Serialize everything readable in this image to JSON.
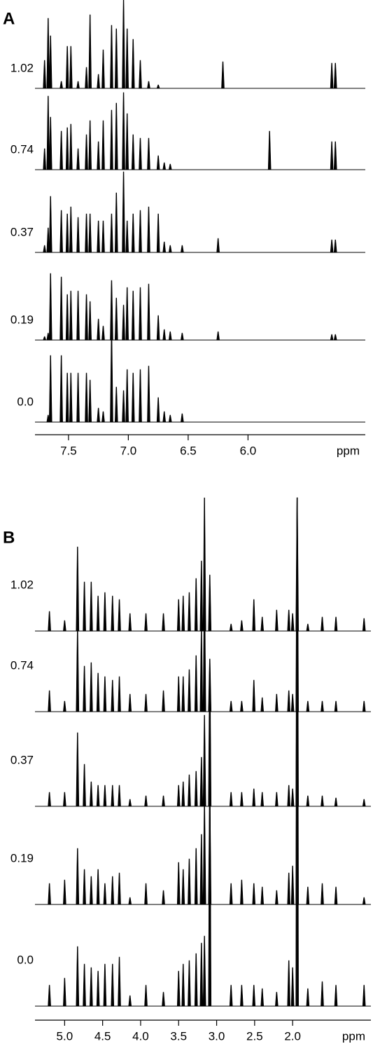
{
  "chart_data": [
    {
      "type": "spectrum",
      "panel_label": "A",
      "xlabel": "ppm",
      "color": "#000000",
      "xlim": [
        7.78,
        5.02
      ],
      "xticks": [
        7.5,
        {
          "value": 7,
          "label": "7.0"
        },
        6.5,
        {
          "value": 6,
          "label": "6.0"
        }
      ],
      "x": [
        7.7,
        7.67,
        7.65,
        7.56,
        7.51,
        7.48,
        7.42,
        7.35,
        7.32,
        7.25,
        7.21,
        7.14,
        7.1,
        7.04,
        7.01,
        6.96,
        6.9,
        6.83,
        6.75,
        6.7,
        6.65,
        6.55,
        6.25,
        6.21,
        5.82,
        5.3,
        5.27
      ],
      "series": [
        {
          "name": "1.02",
          "values": [
            0.4,
            1.0,
            0.75,
            0.1,
            0.6,
            0.6,
            0.1,
            0.3,
            1.05,
            0.2,
            0.55,
            0.9,
            0.85,
            1.26,
            0.85,
            0.7,
            0.4,
            0.1,
            0.05,
            0,
            0,
            0,
            0,
            0.38,
            0,
            0.36,
            0.36
          ]
        },
        {
          "name": "0.74",
          "values": [
            0.3,
            1.05,
            0.75,
            0.55,
            0.6,
            0.65,
            0.3,
            0.5,
            0.7,
            0.4,
            0.7,
            0.85,
            0.95,
            1.1,
            0.8,
            0.5,
            0.45,
            0.45,
            0.2,
            0.1,
            0.08,
            0,
            0,
            0,
            0.55,
            0.4,
            0.4
          ]
        },
        {
          "name": "0.37",
          "values": [
            0.1,
            0.35,
            0.8,
            0.6,
            0.55,
            0.65,
            0.5,
            0.55,
            0.55,
            0.45,
            0.45,
            0.55,
            0.85,
            1.15,
            0.45,
            0.55,
            0.6,
            0.65,
            0.55,
            0.15,
            0.1,
            0.1,
            0.2,
            0,
            0,
            0.18,
            0.18
          ]
        },
        {
          "name": "0.19",
          "values": [
            0.05,
            0.1,
            0.95,
            0.9,
            0.65,
            0.7,
            0.7,
            0.65,
            0.55,
            0.3,
            0.2,
            0.85,
            0.6,
            0.5,
            0.75,
            0.7,
            0.75,
            0.8,
            0.35,
            0.15,
            0.12,
            0.1,
            0.12,
            0,
            0,
            0.08,
            0.08
          ]
        },
        {
          "name": "0.0",
          "values": [
            0,
            0.1,
            0.95,
            0.95,
            0.7,
            0.7,
            0.7,
            0.7,
            0.6,
            0.2,
            0.15,
            1.32,
            0.5,
            0.45,
            0.75,
            0.7,
            0.75,
            0.8,
            0.35,
            0.15,
            0.1,
            0.12,
            0,
            0,
            0,
            0,
            0
          ]
        }
      ]
    },
    {
      "type": "spectrum",
      "panel_label": "B",
      "xlabel": "ppm",
      "color": "#000000",
      "xlim": [
        5.39,
        0.97
      ],
      "xticks": [
        {
          "value": 5,
          "label": "5.0"
        },
        4.5,
        {
          "value": 4,
          "label": "4.0"
        },
        3.5,
        {
          "value": 3,
          "label": "3.0"
        },
        2.5,
        {
          "value": 2,
          "label": "2.0"
        }
      ],
      "x": [
        5.2,
        5.0,
        4.83,
        4.74,
        4.65,
        4.56,
        4.47,
        4.37,
        4.28,
        4.14,
        3.93,
        3.7,
        3.5,
        3.44,
        3.36,
        3.27,
        3.2,
        3.16,
        3.09,
        2.81,
        2.67,
        2.51,
        2.4,
        2.21,
        2.05,
        2.0,
        1.94,
        1.8,
        1.61,
        1.43,
        1.06
      ],
      "series": [
        {
          "name": "1.02",
          "values": [
            0.28,
            0.15,
            1.2,
            0.7,
            0.7,
            0.5,
            0.55,
            0.5,
            0.45,
            0.25,
            0.25,
            0.25,
            0.45,
            0.5,
            0.55,
            0.75,
            1.0,
            1.9,
            0.8,
            0.1,
            0.15,
            0.45,
            0.2,
            0.3,
            0.3,
            0.25,
            1.9,
            0.1,
            0.2,
            0.2,
            0.18
          ]
        },
        {
          "name": "0.74",
          "values": [
            0.3,
            0.15,
            1.2,
            0.65,
            0.7,
            0.55,
            0.5,
            0.45,
            0.5,
            0.25,
            0.25,
            0.3,
            0.5,
            0.5,
            0.6,
            0.8,
            1.2,
            1.85,
            0.75,
            0.15,
            0.15,
            0.45,
            0.2,
            0.25,
            0.3,
            0.25,
            3.05,
            0.15,
            0.15,
            0.15,
            0.15
          ]
        },
        {
          "name": "0.37",
          "values": [
            0.2,
            0.2,
            1.05,
            0.6,
            0.35,
            0.3,
            0.3,
            0.3,
            0.3,
            0.1,
            0.15,
            0.15,
            0.3,
            0.35,
            0.45,
            0.5,
            0.7,
            1.3,
            2.1,
            0.2,
            0.2,
            0.25,
            0.2,
            0.2,
            0.3,
            0.25,
            4.4,
            0.15,
            0.15,
            0.12,
            0.1
          ]
        },
        {
          "name": "0.19",
          "values": [
            0.3,
            0.35,
            0.8,
            0.5,
            0.4,
            0.5,
            0.3,
            0.4,
            0.45,
            0.1,
            0.3,
            0.2,
            0.6,
            0.5,
            0.65,
            0.8,
            1.0,
            1.5,
            1.6,
            0.3,
            0.35,
            0.3,
            0.25,
            0.2,
            0.45,
            0.55,
            5.8,
            0.25,
            0.3,
            0.25,
            0.1
          ]
        },
        {
          "name": "0.0",
          "values": [
            0.3,
            0.4,
            0.85,
            0.6,
            0.55,
            0.5,
            0.6,
            0.6,
            0.7,
            0.15,
            0.3,
            0.2,
            0.5,
            0.6,
            0.65,
            0.75,
            0.9,
            1.0,
            3.5,
            0.3,
            0.3,
            0.3,
            0.25,
            0.2,
            0.65,
            0.55,
            7.25,
            0.25,
            0.35,
            0.3,
            0.3
          ]
        }
      ]
    }
  ]
}
